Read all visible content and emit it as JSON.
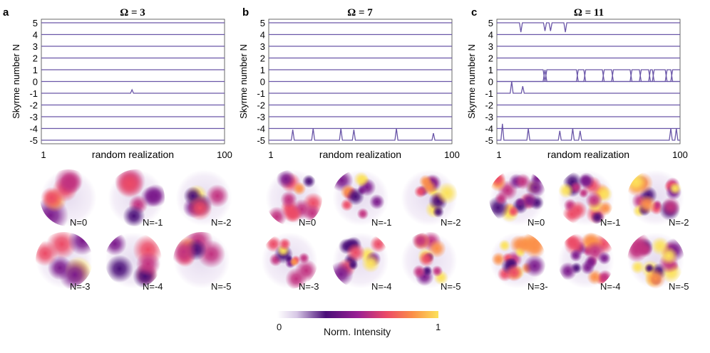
{
  "chart_data": [
    {
      "type": "line",
      "panel_letter": "a",
      "title": "Ω = 3",
      "ylabel": "Skyrme number N",
      "xlabel": "random realization",
      "x_tick_labels": [
        "1",
        "100"
      ],
      "y_tick_labels": [
        "5",
        "4",
        "3",
        "2",
        "1",
        "0",
        "-1",
        "-2",
        "-3",
        "-4",
        "-5"
      ],
      "xlim": [
        1,
        100
      ],
      "ylim": [
        -5.3,
        5.3
      ],
      "series": [
        {
          "name": "N=5",
          "values": [
            5
          ]
        },
        {
          "name": "N=4",
          "values": [
            4
          ]
        },
        {
          "name": "N=3",
          "values": [
            3
          ]
        },
        {
          "name": "N=2",
          "values": [
            2
          ]
        },
        {
          "name": "N=1",
          "values": [
            1
          ]
        },
        {
          "name": "N=0",
          "values": [
            0
          ]
        },
        {
          "name": "N=-1",
          "values": [
            -1
          ],
          "spikes": [
            [
              50,
              -0.7
            ]
          ]
        },
        {
          "name": "N=-2",
          "values": [
            -2
          ]
        },
        {
          "name": "N=-3",
          "values": [
            -3
          ]
        },
        {
          "name": "N=-4",
          "values": [
            -4
          ]
        },
        {
          "name": "N=-5",
          "values": [
            -5
          ]
        }
      ]
    },
    {
      "type": "line",
      "panel_letter": "b",
      "title": "Ω = 7",
      "ylabel": "Skyrme number N",
      "xlabel": "random realization",
      "x_tick_labels": [
        "1",
        "100"
      ],
      "y_tick_labels": [
        "5",
        "4",
        "3",
        "2",
        "1",
        "0",
        "-1",
        "-2",
        "-3",
        "-4",
        "-5"
      ],
      "xlim": [
        1,
        100
      ],
      "ylim": [
        -5.3,
        5.3
      ],
      "series": [
        {
          "name": "N=5",
          "values": [
            5
          ]
        },
        {
          "name": "N=4",
          "values": [
            4
          ]
        },
        {
          "name": "N=3",
          "values": [
            3
          ]
        },
        {
          "name": "N=2",
          "values": [
            2
          ]
        },
        {
          "name": "N=1",
          "values": [
            1
          ]
        },
        {
          "name": "N=0",
          "values": [
            0
          ]
        },
        {
          "name": "N=-1",
          "values": [
            -1
          ]
        },
        {
          "name": "N=-2",
          "values": [
            -2
          ]
        },
        {
          "name": "N=-3",
          "values": [
            -3
          ]
        },
        {
          "name": "N=-4",
          "values": [
            -4
          ]
        },
        {
          "name": "N=-5",
          "values": [
            -5
          ],
          "spikes": [
            [
              14,
              -4.1
            ],
            [
              25,
              -4.0
            ],
            [
              40,
              -4.0
            ],
            [
              47,
              -4.1
            ],
            [
              70,
              -4.0
            ],
            [
              90,
              -4.4
            ]
          ]
        }
      ]
    },
    {
      "type": "line",
      "panel_letter": "c",
      "title": "Ω = 11",
      "ylabel": "Skyrme number N",
      "xlabel": "random realization",
      "x_tick_labels": [
        "1",
        "100"
      ],
      "y_tick_labels": [
        "5",
        "4",
        "3",
        "2",
        "1",
        "0",
        "-1",
        "-2",
        "-3",
        "-4",
        "-5"
      ],
      "xlim": [
        1,
        100
      ],
      "ylim": [
        -5.3,
        5.3
      ],
      "series": [
        {
          "name": "N=5",
          "values": [
            5
          ],
          "dips": [
            [
              14,
              4.2
            ],
            [
              27,
              4.3
            ],
            [
              30,
              4.3
            ],
            [
              38,
              4.2
            ]
          ]
        },
        {
          "name": "N=4",
          "values": [
            4
          ]
        },
        {
          "name": "N=3",
          "values": [
            3
          ]
        },
        {
          "name": "N=2",
          "values": [
            2
          ]
        },
        {
          "name": "N=1",
          "values": [
            1
          ],
          "swaps": [
            [
              26,
              27
            ],
            [
              44,
              48
            ],
            [
              58,
              63
            ],
            [
              73,
              78
            ],
            [
              83,
              85
            ],
            [
              92,
              95
            ]
          ]
        },
        {
          "name": "N=0",
          "values": [
            0
          ]
        },
        {
          "name": "N=-1",
          "values": [
            -1
          ],
          "spikes": [
            [
              9,
              0.0
            ],
            [
              15,
              -0.4
            ]
          ]
        },
        {
          "name": "N=-2",
          "values": [
            -2
          ]
        },
        {
          "name": "N=-3",
          "values": [
            -3
          ]
        },
        {
          "name": "N=-4",
          "values": [
            -4
          ]
        },
        {
          "name": "N=-5",
          "values": [
            -5
          ],
          "spikes": [
            [
              4,
              -3.6
            ],
            [
              18,
              -4.0
            ],
            [
              35,
              -4.2
            ],
            [
              42,
              -4.0
            ],
            [
              46,
              -4.2
            ],
            [
              95,
              -4.0
            ],
            [
              98,
              -4.0
            ]
          ]
        }
      ]
    }
  ],
  "intensity_maps": {
    "a": {
      "labels": [
        "N=0",
        "N=-1",
        "N=-2",
        "N=-3",
        "N=-4",
        "N=-5"
      ]
    },
    "b": {
      "labels": [
        "N=0",
        "N=-1",
        "N=-2",
        "N=-3",
        "N=-4",
        "N=-5"
      ]
    },
    "c": {
      "labels": [
        "N=0",
        "N=-1",
        "N=-2",
        "N=3-",
        "N=-4",
        "N=-5"
      ]
    }
  },
  "colorbar": {
    "label": "Norm. Intensity",
    "min_label": "0",
    "max_label": "1",
    "colors": [
      "#ffffff",
      "#4a0e78",
      "#9a1f94",
      "#ec4a66",
      "#fb8f48",
      "#fce25a"
    ]
  },
  "line_color": "#6a56a8"
}
